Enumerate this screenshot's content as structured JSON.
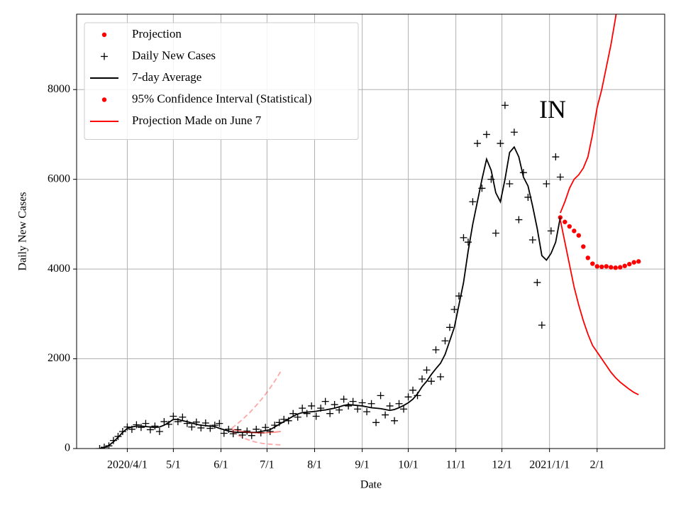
{
  "chart_data": {
    "type": "line",
    "xlabel": "Date",
    "ylabel": "Daily New Cases",
    "xlim": [
      "2020-02-28",
      "2021-03-17"
    ],
    "ylim": [
      0,
      9680
    ],
    "xticks": [
      {
        "value": "2020-04-01",
        "label": "2020/4/1"
      },
      {
        "value": "2020-05-01",
        "label": "5/1"
      },
      {
        "value": "2020-06-01",
        "label": "6/1"
      },
      {
        "value": "2020-07-01",
        "label": "7/1"
      },
      {
        "value": "2020-08-01",
        "label": "8/1"
      },
      {
        "value": "2020-09-01",
        "label": "9/1"
      },
      {
        "value": "2020-10-01",
        "label": "10/1"
      },
      {
        "value": "2020-11-01",
        "label": "11/1"
      },
      {
        "value": "2020-12-01",
        "label": "12/1"
      },
      {
        "value": "2021-01-01",
        "label": "2021/1/1"
      },
      {
        "value": "2021-02-01",
        "label": "2/1"
      }
    ],
    "yticks": [
      0,
      2000,
      4000,
      6000,
      8000
    ],
    "grid": true,
    "legend": "upper left",
    "annotations": [
      {
        "text": "IN",
        "x": "2021-01-03",
        "y": 7500
      }
    ],
    "x": [
      "2020-03-14",
      "2020-03-17",
      "2020-03-20",
      "2020-03-23",
      "2020-03-26",
      "2020-03-29",
      "2020-04-01",
      "2020-04-04",
      "2020-04-07",
      "2020-04-10",
      "2020-04-13",
      "2020-04-16",
      "2020-04-19",
      "2020-04-22",
      "2020-04-25",
      "2020-04-28",
      "2020-05-01",
      "2020-05-04",
      "2020-05-07",
      "2020-05-10",
      "2020-05-13",
      "2020-05-16",
      "2020-05-19",
      "2020-05-22",
      "2020-05-25",
      "2020-05-28",
      "2020-05-31",
      "2020-06-03",
      "2020-06-06",
      "2020-06-09",
      "2020-06-12",
      "2020-06-15",
      "2020-06-18",
      "2020-06-21",
      "2020-06-24",
      "2020-06-27",
      "2020-06-30",
      "2020-07-03",
      "2020-07-06",
      "2020-07-09",
      "2020-07-12",
      "2020-07-15",
      "2020-07-18",
      "2020-07-21",
      "2020-07-24",
      "2020-07-27",
      "2020-07-30",
      "2020-08-02",
      "2020-08-05",
      "2020-08-08",
      "2020-08-11",
      "2020-08-14",
      "2020-08-17",
      "2020-08-20",
      "2020-08-23",
      "2020-08-26",
      "2020-08-29",
      "2020-09-01",
      "2020-09-04",
      "2020-09-07",
      "2020-09-10",
      "2020-09-13",
      "2020-09-16",
      "2020-09-19",
      "2020-09-22",
      "2020-09-25",
      "2020-09-28",
      "2020-10-01",
      "2020-10-04",
      "2020-10-07",
      "2020-10-10",
      "2020-10-13",
      "2020-10-16",
      "2020-10-19",
      "2020-10-22",
      "2020-10-25",
      "2020-10-28",
      "2020-10-31",
      "2020-11-03",
      "2020-11-06",
      "2020-11-09",
      "2020-11-12",
      "2020-11-15",
      "2020-11-18",
      "2020-11-21",
      "2020-11-24",
      "2020-11-27",
      "2020-11-30",
      "2020-12-03",
      "2020-12-06",
      "2020-12-09",
      "2020-12-12",
      "2020-12-15",
      "2020-12-18",
      "2020-12-21",
      "2020-12-24",
      "2020-12-27",
      "2020-12-30",
      "2021-01-02",
      "2021-01-05",
      "2021-01-08"
    ],
    "series": [
      {
        "name": "Projection",
        "style": "dots",
        "color": "#ff0000",
        "x": [
          "2021-01-08",
          "2021-01-11",
          "2021-01-14",
          "2021-01-17",
          "2021-01-20",
          "2021-01-23",
          "2021-01-26",
          "2021-01-29",
          "2021-02-01",
          "2021-02-04",
          "2021-02-07",
          "2021-02-10",
          "2021-02-13",
          "2021-02-16",
          "2021-02-19",
          "2021-02-22",
          "2021-02-25",
          "2021-02-28"
        ],
        "values": [
          5150,
          5050,
          4950,
          4850,
          4750,
          4500,
          4250,
          4120,
          4060,
          4050,
          4060,
          4040,
          4030,
          4040,
          4070,
          4110,
          4150,
          4170
        ]
      },
      {
        "name": "Daily New Cases",
        "style": "plus",
        "color": "#000000",
        "values": [
          0,
          30,
          60,
          180,
          270,
          380,
          480,
          430,
          530,
          470,
          560,
          420,
          500,
          380,
          600,
          540,
          720,
          600,
          700,
          560,
          480,
          590,
          460,
          570,
          450,
          520,
          560,
          340,
          430,
          330,
          420,
          300,
          390,
          290,
          430,
          350,
          470,
          380,
          520,
          580,
          650,
          620,
          780,
          700,
          900,
          780,
          950,
          720,
          900,
          1050,
          780,
          980,
          860,
          1100,
          950,
          1050,
          880,
          1020,
          820,
          1000,
          580,
          1180,
          750,
          950,
          620,
          1000,
          880,
          1150,
          1300,
          1180,
          1550,
          1750,
          1500,
          2200,
          1600,
          2400,
          2700,
          3100,
          3400,
          4700,
          4600,
          5500,
          6800,
          5800,
          7000,
          6000,
          4800,
          6800,
          7650,
          5900,
          7050,
          5100,
          6150,
          5600,
          4650,
          3700,
          2750,
          5900,
          4850,
          6500,
          6050
        ]
      },
      {
        "name": "7-day Average",
        "style": "line",
        "color": "#000000",
        "values": [
          0,
          20,
          70,
          150,
          250,
          360,
          450,
          480,
          500,
          500,
          490,
          480,
          470,
          480,
          520,
          580,
          650,
          650,
          620,
          600,
          570,
          540,
          520,
          510,
          500,
          490,
          450,
          420,
          390,
          370,
          360,
          360,
          360,
          360,
          360,
          380,
          400,
          420,
          480,
          540,
          600,
          660,
          720,
          770,
          800,
          810,
          820,
          830,
          850,
          860,
          880,
          900,
          930,
          960,
          980,
          970,
          960,
          950,
          930,
          910,
          900,
          890,
          870,
          850,
          870,
          910,
          960,
          1020,
          1100,
          1220,
          1380,
          1500,
          1650,
          1780,
          1900,
          2100,
          2400,
          2700,
          3200,
          3700,
          4400,
          5000,
          5500,
          6000,
          6450,
          6200,
          5700,
          5500,
          6000,
          6600,
          6720,
          6500,
          6050,
          5850,
          5400,
          4900,
          4300,
          4200,
          4350,
          4600,
          5150
        ]
      },
      {
        "name": "95% Confidence Interval (Statistical)",
        "style": "bounds",
        "legend_marker": "dots",
        "color": "#ff0000",
        "x": [
          "2021-01-08",
          "2021-01-11",
          "2021-01-14",
          "2021-01-17",
          "2021-01-20",
          "2021-01-23",
          "2021-01-26",
          "2021-01-29",
          "2021-02-01",
          "2021-02-04",
          "2021-02-07",
          "2021-02-10",
          "2021-02-13",
          "2021-02-16",
          "2021-02-19",
          "2021-02-22",
          "2021-02-25",
          "2021-02-28"
        ],
        "upper": [
          5250,
          5500,
          5800,
          6000,
          6100,
          6250,
          6500,
          7000,
          7600,
          8000,
          8500,
          9000,
          9600,
          10300,
          11000,
          11800,
          12700,
          13600
        ],
        "lower": [
          5100,
          4600,
          4100,
          3600,
          3200,
          2850,
          2550,
          2300,
          2150,
          2000,
          1850,
          1700,
          1580,
          1480,
          1400,
          1320,
          1250,
          1200
        ]
      },
      {
        "name": "Projection Made on June 7",
        "style": "bounds",
        "legend_marker": "line",
        "color": "#ff0000",
        "alpha": 0.35,
        "bound_dash": true,
        "x": [
          "2020-06-08",
          "2020-06-12",
          "2020-06-16",
          "2020-06-20",
          "2020-06-24",
          "2020-06-28",
          "2020-07-02",
          "2020-07-06",
          "2020-07-10"
        ],
        "values": [
          430,
          400,
          375,
          360,
          350,
          350,
          355,
          365,
          380
        ],
        "upper": [
          450,
          560,
          680,
          810,
          960,
          1120,
          1300,
          1500,
          1720
        ],
        "lower": [
          400,
          300,
          230,
          180,
          140,
          115,
          100,
          90,
          80
        ]
      }
    ]
  }
}
